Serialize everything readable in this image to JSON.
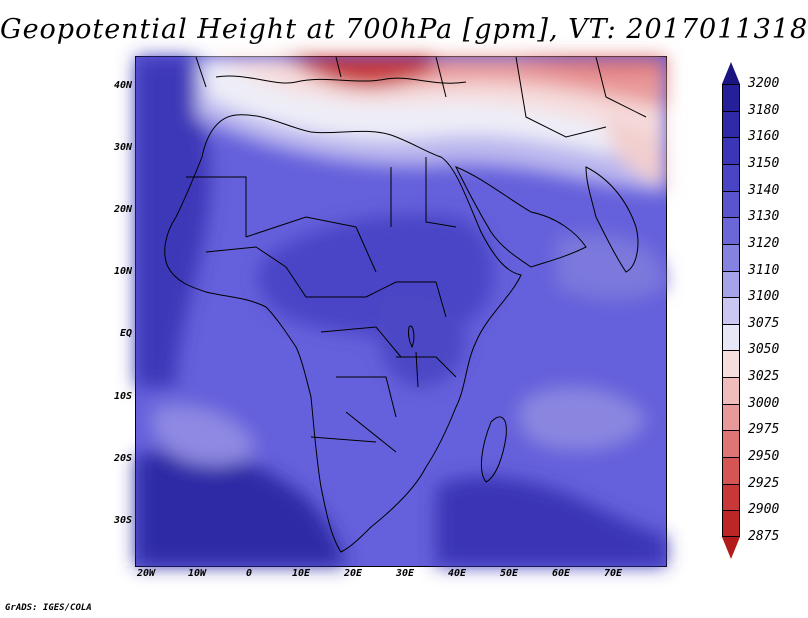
{
  "title": "Geopotential Height at 700hPa [gpm], VT: 2017011318",
  "credit": "GrADS: IGES/COLA",
  "map": {
    "region": "Africa",
    "variable": "700hPa geopotential height",
    "lat_labels": [
      "40N",
      "30N",
      "20N",
      "10N",
      "EQ",
      "10S",
      "20S",
      "30S"
    ],
    "lon_labels": [
      "20W",
      "10W",
      "0",
      "10E",
      "20E",
      "30E",
      "40E",
      "50E",
      "60E",
      "70E"
    ]
  },
  "colorbar": {
    "levels": [
      "3200",
      "3180",
      "3160",
      "3150",
      "3140",
      "3130",
      "3120",
      "3110",
      "3100",
      "3075",
      "3050",
      "3025",
      "3000",
      "2975",
      "2950",
      "2925",
      "2900",
      "2875"
    ],
    "colors": [
      "#25209a",
      "#2e2aa8",
      "#3a36b7",
      "#4a45c4",
      "#5a55cf",
      "#6b67d8",
      "#8682e1",
      "#a6a3ea",
      "#cac8f2",
      "#e8e7f8",
      "#f6dede",
      "#f0bcbc",
      "#e89a9a",
      "#df7676",
      "#d55454",
      "#c93838",
      "#bd2626"
    ],
    "top_arrow_color": "#1a1580",
    "bottom_arrow_color": "#b21b1b"
  }
}
